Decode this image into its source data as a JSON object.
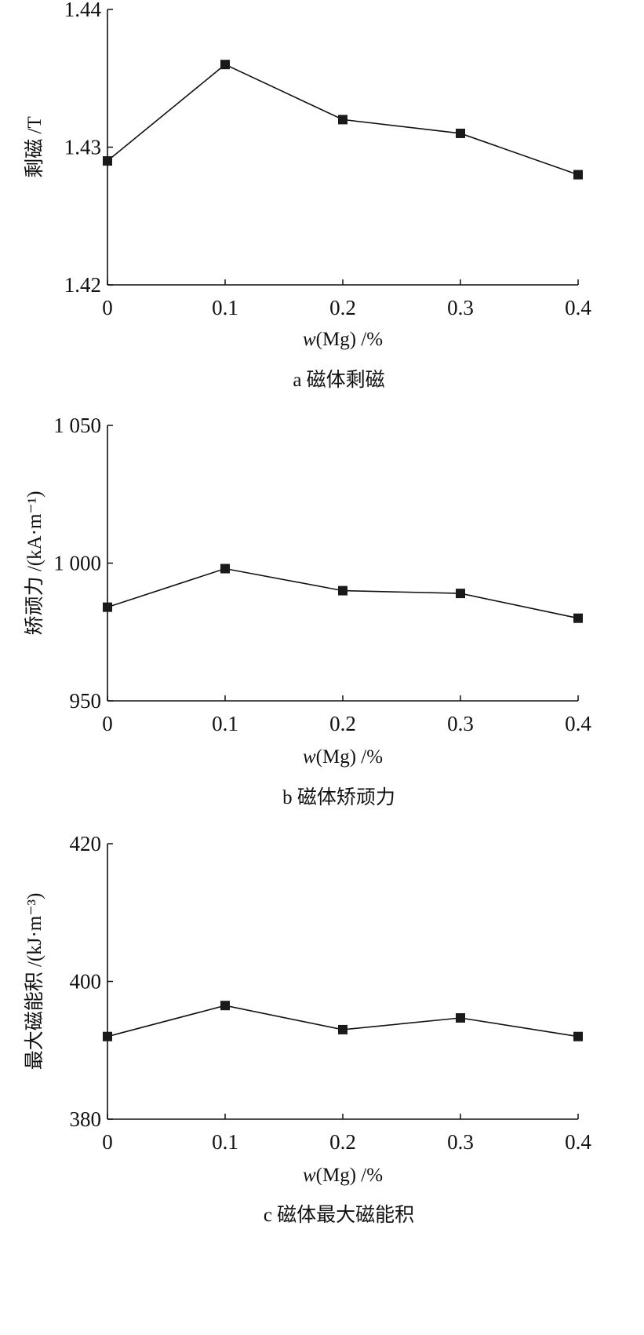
{
  "chart_data": [
    {
      "type": "line",
      "title": "a 磁体剩磁",
      "xlabel_var": "w",
      "xlabel_rest": "(Mg) /%",
      "ylabel": "剩磁 /T",
      "x": [
        0,
        0.1,
        0.2,
        0.3,
        0.4
      ],
      "x_tick_labels": [
        "0",
        "0.1",
        "0.2",
        "0.3",
        "0.4"
      ],
      "values": [
        1.429,
        1.436,
        1.432,
        1.431,
        1.428
      ],
      "ylim": [
        1.42,
        1.44
      ],
      "y_ticks": [
        1.42,
        1.43,
        1.44
      ],
      "y_tick_labels": [
        "1.42",
        "1.43",
        "1.44"
      ],
      "xlim": [
        0,
        0.4
      ],
      "marker": "square",
      "grid": false
    },
    {
      "type": "line",
      "title": "b 磁体矫顽力",
      "xlabel_var": "w",
      "xlabel_rest": "(Mg) /%",
      "ylabel": "矫顽力 /(kA·m⁻¹)",
      "x": [
        0,
        0.1,
        0.2,
        0.3,
        0.4
      ],
      "x_tick_labels": [
        "0",
        "0.1",
        "0.2",
        "0.3",
        "0.4"
      ],
      "values": [
        984,
        998,
        990,
        989,
        980
      ],
      "ylim": [
        950,
        1050
      ],
      "y_ticks": [
        950,
        1000,
        1050
      ],
      "y_tick_labels": [
        "950",
        "1 000",
        "1 050"
      ],
      "xlim": [
        0,
        0.4
      ],
      "marker": "square",
      "grid": false
    },
    {
      "type": "line",
      "title": "c 磁体最大磁能积",
      "xlabel_var": "w",
      "xlabel_rest": "(Mg) /%",
      "ylabel": "最大磁能积 /(kJ·m⁻³)",
      "x": [
        0,
        0.1,
        0.2,
        0.3,
        0.4
      ],
      "x_tick_labels": [
        "0",
        "0.1",
        "0.2",
        "0.3",
        "0.4"
      ],
      "values": [
        392,
        396.5,
        393,
        394.7,
        392
      ],
      "ylim": [
        380,
        420
      ],
      "y_ticks": [
        380,
        400,
        420
      ],
      "y_tick_labels": [
        "380",
        "400",
        "420"
      ],
      "xlim": [
        0,
        0.4
      ],
      "marker": "square",
      "grid": false
    }
  ]
}
